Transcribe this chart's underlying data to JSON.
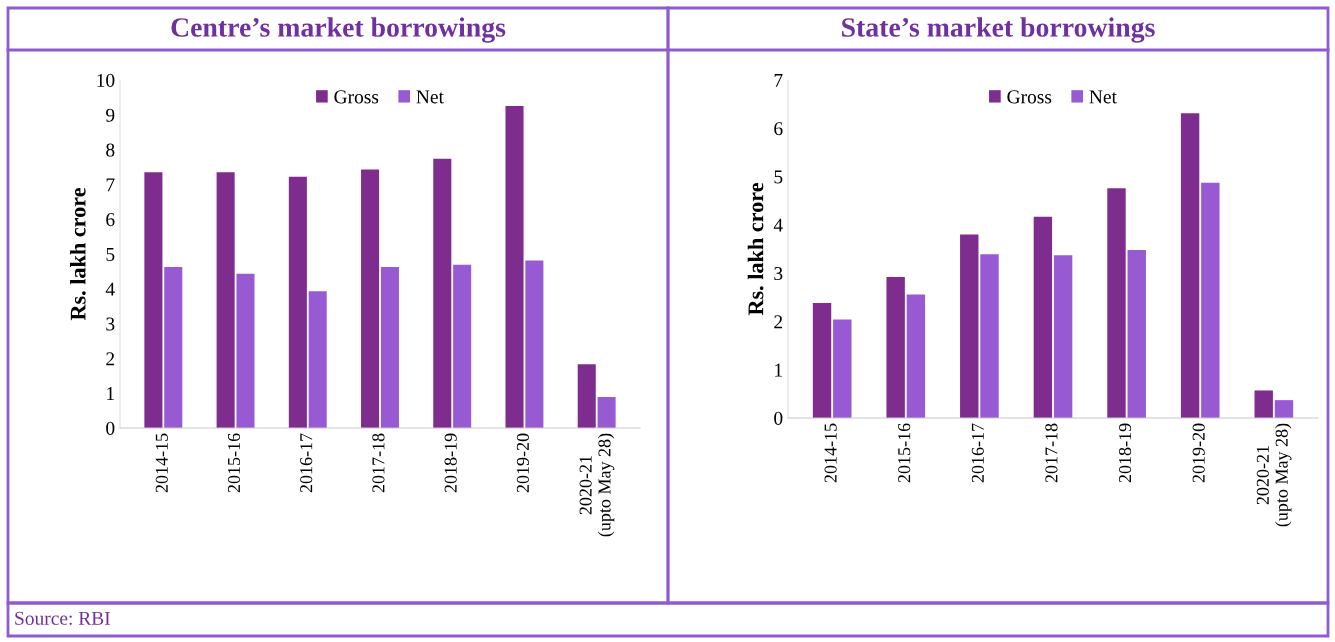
{
  "chart_data": [
    {
      "type": "bar",
      "title": "Centre’s market borrowings",
      "ylabel": "Rs. lakh crore",
      "categories": [
        "2014-15",
        "2015-16",
        "2016-17",
        "2017-18",
        "2018-19",
        "2019-20",
        "2020-21\n(upto May 28)"
      ],
      "series": [
        {
          "name": "Gross",
          "color": "#7e2c8e",
          "values": [
            7.35,
            7.35,
            7.22,
            7.43,
            7.74,
            9.25,
            1.83
          ]
        },
        {
          "name": "Net",
          "color": "#985ad2",
          "values": [
            4.63,
            4.43,
            3.93,
            4.63,
            4.69,
            4.81,
            0.89
          ]
        }
      ],
      "ylim": [
        0,
        10
      ],
      "yticks": [
        0,
        1,
        2,
        3,
        4,
        5,
        6,
        7,
        8,
        9,
        10
      ],
      "grid": false,
      "legend": "top",
      "annotations": [
        "Source: RBI"
      ]
    },
    {
      "type": "bar",
      "title": "State’s market borrowings",
      "ylabel": "Rs. lakh crore",
      "categories": [
        "2014-15",
        "2015-16",
        "2016-17",
        "2017-18",
        "2018-19",
        "2019-20",
        "2020-21\n(upto May 28)"
      ],
      "series": [
        {
          "name": "Gross",
          "color": "#7e2c8e",
          "values": [
            2.38,
            2.92,
            3.8,
            4.17,
            4.76,
            6.31,
            0.57
          ]
        },
        {
          "name": "Net",
          "color": "#985ad2",
          "values": [
            2.04,
            2.56,
            3.39,
            3.37,
            3.48,
            4.87,
            0.37
          ]
        }
      ],
      "ylim": [
        0,
        7
      ],
      "yticks": [
        0,
        1,
        2,
        3,
        4,
        5,
        6,
        7
      ],
      "grid": false,
      "legend": "top"
    }
  ]
}
